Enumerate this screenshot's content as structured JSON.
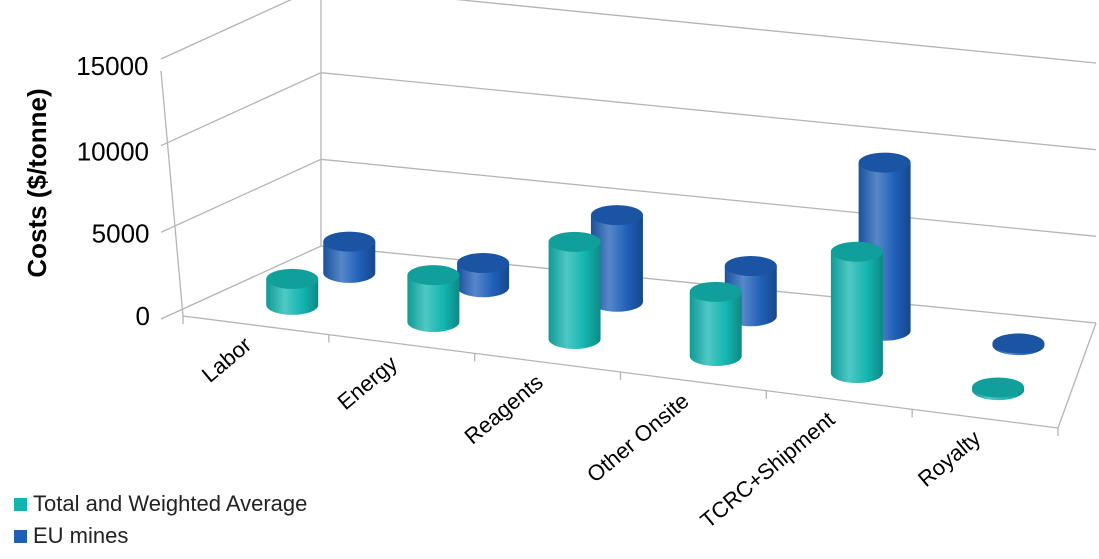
{
  "chart_data": {
    "type": "bar",
    "style": "3d-cylinder",
    "title": "",
    "xlabel": "",
    "ylabel": "Costs ($/tonne)",
    "ylim": [
      0,
      15000
    ],
    "yticks": [
      "0",
      "5000",
      "10000",
      "15000"
    ],
    "categories": [
      "Labor",
      "Energy",
      "Reagents",
      "Other Onsite",
      "TCRC+Shipment",
      "Royalty"
    ],
    "series": [
      {
        "name": "Total and Weighted Average",
        "color": "#13b5b0",
        "values": [
          1500,
          2700,
          5600,
          3700,
          7000,
          150
        ]
      },
      {
        "name": "EU mines",
        "color": "#1f5fb8",
        "values": [
          1800,
          1400,
          5000,
          2900,
          9700,
          100
        ]
      }
    ],
    "grid": true,
    "legend_position": "bottom-left"
  }
}
